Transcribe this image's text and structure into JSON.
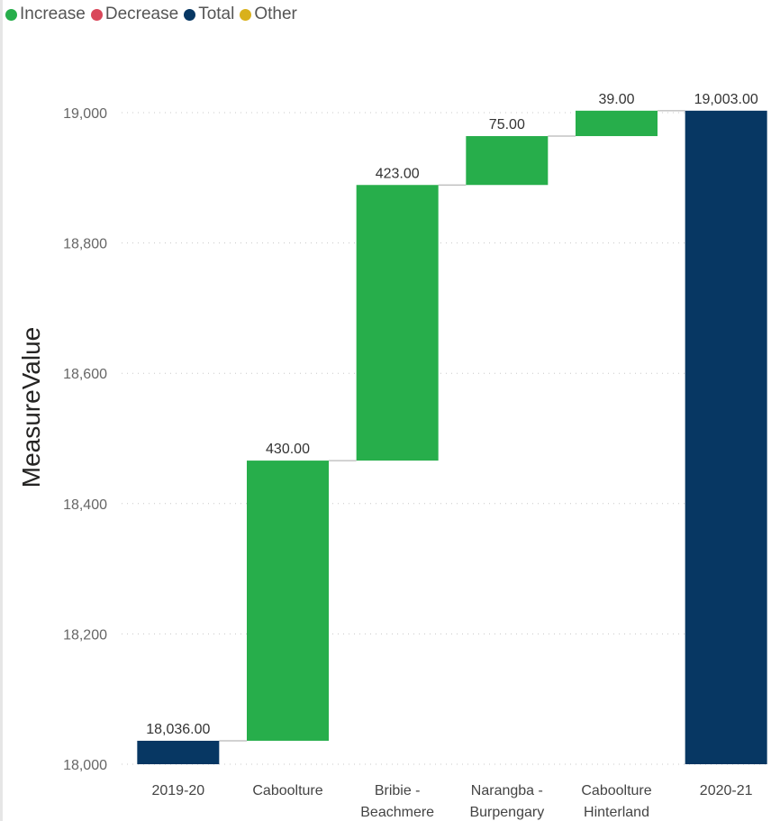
{
  "chart_data": {
    "type": "waterfall",
    "ylabel": "MeasureValue",
    "ylim": [
      18000,
      19000
    ],
    "yticks": [
      18000,
      18200,
      18400,
      18600,
      18800,
      19000
    ],
    "ytick_labels": [
      "18,000",
      "18,200",
      "18,400",
      "18,600",
      "18,800",
      "19,000"
    ],
    "legend": {
      "placement": "top-left",
      "items": [
        {
          "label": "Increase",
          "color": "#27AE4B"
        },
        {
          "label": "Decrease",
          "color": "#D9475A"
        },
        {
          "label": "Total",
          "color": "#073763"
        },
        {
          "label": "Other",
          "color": "#D9B11C"
        }
      ]
    },
    "grid": "horizontal-dotted",
    "bars": [
      {
        "label_lines": [
          "2019-20"
        ],
        "kind": "total",
        "start": 0,
        "end": 18036,
        "value_label": "18,036.00"
      },
      {
        "label_lines": [
          "Caboolture"
        ],
        "kind": "increase",
        "start": 18036,
        "end": 18466,
        "value_label": "430.00"
      },
      {
        "label_lines": [
          "Bribie -",
          "Beachmere"
        ],
        "kind": "increase",
        "start": 18466,
        "end": 18889,
        "value_label": "423.00"
      },
      {
        "label_lines": [
          "Narangba -",
          "Burpengary"
        ],
        "kind": "increase",
        "start": 18889,
        "end": 18964,
        "value_label": "75.00"
      },
      {
        "label_lines": [
          "Caboolture",
          "Hinterland"
        ],
        "kind": "increase",
        "start": 18964,
        "end": 19003,
        "value_label": "39.00"
      },
      {
        "label_lines": [
          "2020-21"
        ],
        "kind": "total",
        "start": 0,
        "end": 19003,
        "value_label": "19,003.00"
      }
    ]
  }
}
